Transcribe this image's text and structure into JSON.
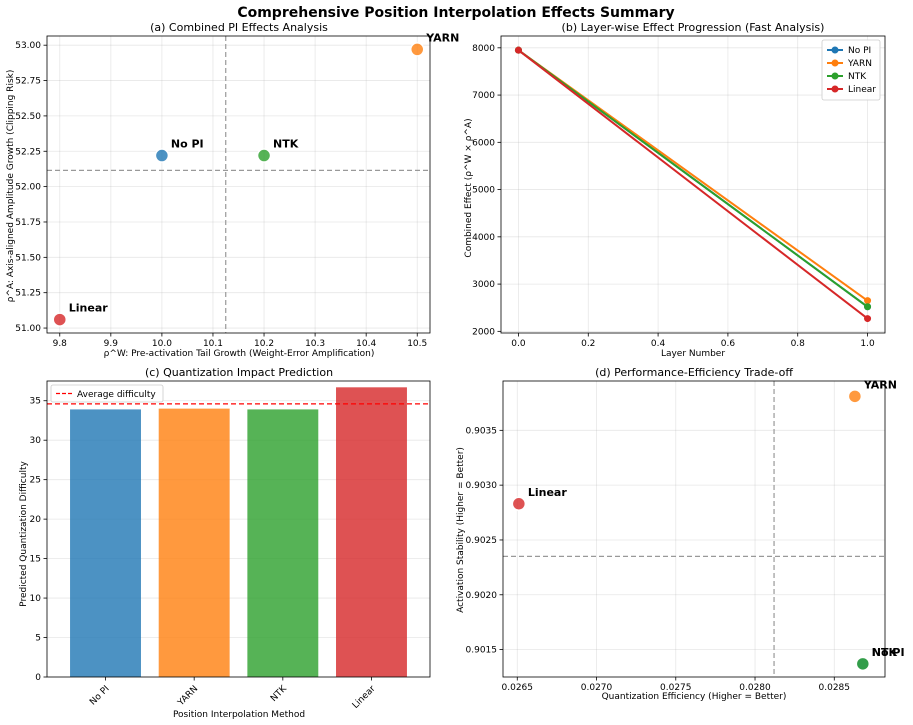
{
  "figure": {
    "suptitle": "Comprehensive Position Interpolation Effects Summary"
  },
  "colors": {
    "No PI": "#1f77b4",
    "YARN": "#ff7f0e",
    "NTK": "#2ca02c",
    "Linear": "#d62728",
    "avgline": "#ff0000"
  },
  "chart_data": [
    {
      "id": "a",
      "type": "scatter",
      "title": "(a) Combined PI Effects Analysis",
      "xlabel": "ρ^W: Pre-activation Tail Growth (Weight-Error Amplification)",
      "ylabel": "ρ^A: Axis-aligned Amplitude Growth (Clipping Risk)",
      "xlim": [
        9.775,
        10.525
      ],
      "ylim": [
        50.965,
        53.065
      ],
      "xticks": [
        9.8,
        9.9,
        10.0,
        10.1,
        10.2,
        10.3,
        10.4,
        10.5
      ],
      "xtick_labels": [
        "9.8",
        "9.9",
        "10.0",
        "10.1",
        "10.2",
        "10.3",
        "10.4",
        "10.5"
      ],
      "yticks": [
        51.0,
        51.25,
        51.5,
        51.75,
        52.0,
        52.25,
        52.5,
        52.75,
        53.0
      ],
      "ytick_labels": [
        "51.00",
        "51.25",
        "51.50",
        "51.75",
        "52.00",
        "52.25",
        "52.50",
        "52.75",
        "53.00"
      ],
      "ref_x": 10.125,
      "ref_y": 52.115,
      "points": [
        {
          "name": "No PI",
          "x": 10.0,
          "y": 52.22
        },
        {
          "name": "YARN",
          "x": 10.5,
          "y": 52.97
        },
        {
          "name": "NTK",
          "x": 10.2,
          "y": 52.22
        },
        {
          "name": "Linear",
          "x": 9.8,
          "y": 51.06
        }
      ]
    },
    {
      "id": "b",
      "type": "line",
      "title": "(b) Layer-wise Effect Progression (Fast Analysis)",
      "xlabel": "Layer Number",
      "ylabel": "Combined Effect (ρ^W × ρ^A)",
      "xlim": [
        -0.05,
        1.05
      ],
      "ylim": [
        1965,
        8250
      ],
      "xticks": [
        0.0,
        0.2,
        0.4,
        0.6,
        0.8,
        1.0
      ],
      "xtick_labels": [
        "0.0",
        "0.2",
        "0.4",
        "0.6",
        "0.8",
        "1.0"
      ],
      "yticks": [
        2000,
        3000,
        4000,
        5000,
        6000,
        7000,
        8000
      ],
      "ytick_labels": [
        "2000",
        "3000",
        "4000",
        "5000",
        "6000",
        "7000",
        "8000"
      ],
      "x": [
        0,
        1
      ],
      "legend_position": "top-right",
      "series": [
        {
          "name": "No PI",
          "values": [
            7950,
            2520
          ]
        },
        {
          "name": "YARN",
          "values": [
            7950,
            2650
          ]
        },
        {
          "name": "NTK",
          "values": [
            7950,
            2520
          ]
        },
        {
          "name": "Linear",
          "values": [
            7950,
            2270
          ]
        }
      ]
    },
    {
      "id": "c",
      "type": "bar",
      "title": "(c) Quantization Impact Prediction",
      "xlabel": "Position Interpolation Method",
      "ylabel": "Predicted Quantization Difficulty",
      "ylim": [
        0,
        37.5
      ],
      "yticks": [
        0,
        5,
        10,
        15,
        20,
        25,
        30,
        35
      ],
      "ytick_labels": [
        "0",
        "5",
        "10",
        "15",
        "20",
        "25",
        "30",
        "35"
      ],
      "categories": [
        "No PI",
        "YARN",
        "NTK",
        "Linear"
      ],
      "values": [
        33.9,
        34.0,
        33.9,
        36.7
      ],
      "average_line": 34.6,
      "legend_label": "Average difficulty",
      "legend_position": "top-left"
    },
    {
      "id": "d",
      "type": "scatter",
      "title": "(d) Performance-Efficiency Trade-off",
      "xlabel": "Quantization Efficiency (Higher = Better)",
      "ylabel": "Activation Stability (Higher = Better)",
      "xlim": [
        0.02641,
        0.02882
      ],
      "ylim": [
        0.90125,
        0.90395
      ],
      "xticks": [
        0.0265,
        0.027,
        0.0275,
        0.028,
        0.0285
      ],
      "xtick_labels": [
        "0.0265",
        "0.0270",
        "0.0275",
        "0.0280",
        "0.0285"
      ],
      "yticks": [
        0.9015,
        0.902,
        0.9025,
        0.903,
        0.9035
      ],
      "ytick_labels": [
        "0.9015",
        "0.9020",
        "0.9025",
        "0.9030",
        "0.9035"
      ],
      "ref_x": 0.02812,
      "ref_y": 0.90235,
      "points": [
        {
          "name": "No PI",
          "x": 0.02868,
          "y": 0.90137
        },
        {
          "name": "YARN",
          "x": 0.02863,
          "y": 0.90381
        },
        {
          "name": "NTK",
          "x": 0.02868,
          "y": 0.90137
        },
        {
          "name": "Linear",
          "x": 0.02651,
          "y": 0.90283
        }
      ]
    }
  ]
}
